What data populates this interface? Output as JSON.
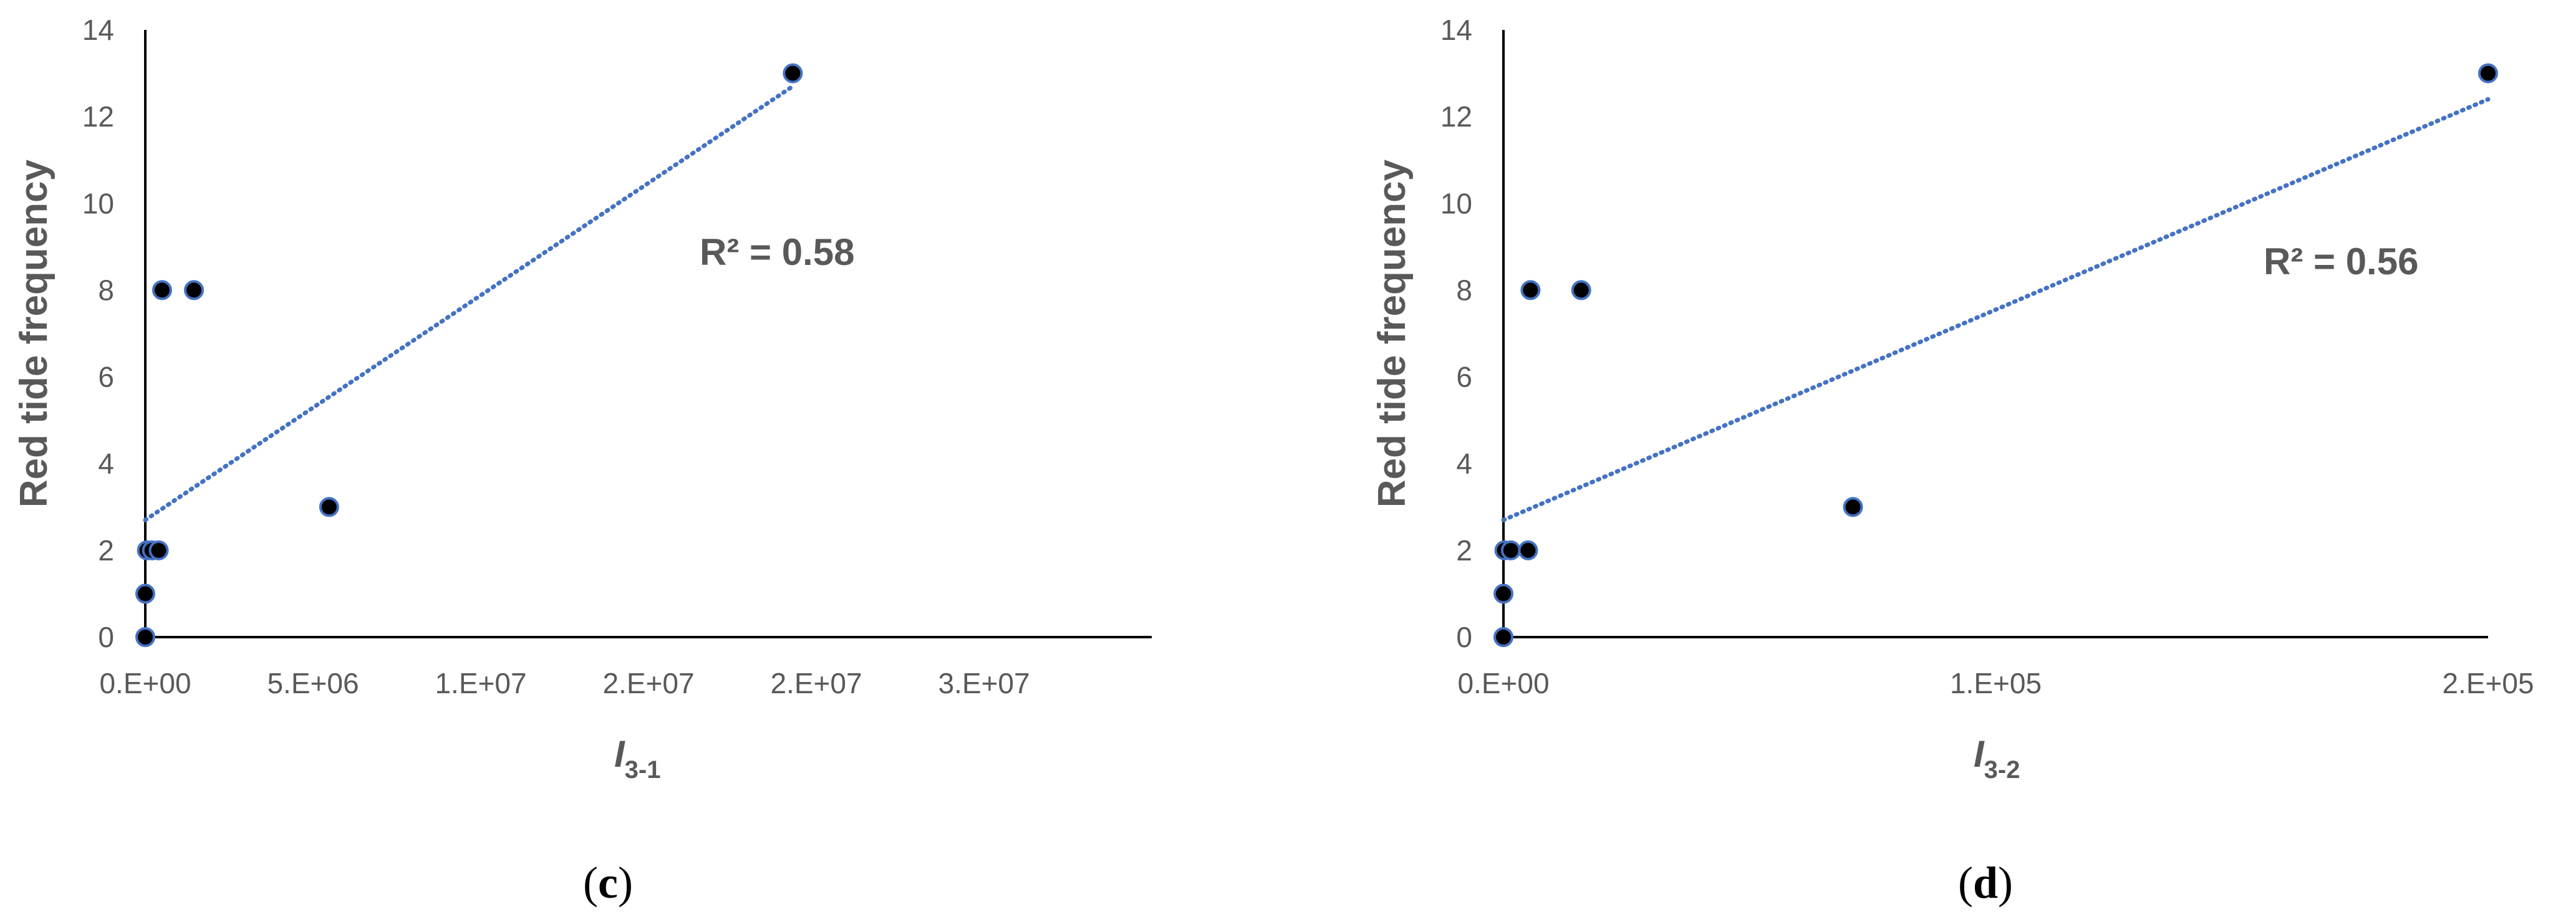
{
  "chart_data": [
    {
      "type": "scatter",
      "panel_label": "c",
      "ylabel": "Red tide frequency",
      "xlabel": {
        "main": "I",
        "subscript": "3-1"
      },
      "xlim": [
        0,
        30000000
      ],
      "ylim": [
        0,
        14
      ],
      "x_ticks": [
        {
          "value": 0,
          "label": "0.E+00"
        },
        {
          "value": 5000000,
          "label": "5.E+06"
        },
        {
          "value": 10000000,
          "label": "1.E+07"
        },
        {
          "value": 15000000,
          "label": "2.E+07"
        },
        {
          "value": 20000000,
          "label": "2.E+07"
        },
        {
          "value": 25000000,
          "label": "3.E+07"
        }
      ],
      "y_ticks": [
        0,
        2,
        4,
        6,
        8,
        10,
        12,
        14
      ],
      "points": [
        {
          "x": 0,
          "y": 0
        },
        {
          "x": 0,
          "y": 1
        },
        {
          "x": 50000,
          "y": 2
        },
        {
          "x": 200000,
          "y": 2
        },
        {
          "x": 400000,
          "y": 2
        },
        {
          "x": 500000,
          "y": 8
        },
        {
          "x": 1450000,
          "y": 8
        },
        {
          "x": 5480000,
          "y": 3
        },
        {
          "x": 19300000,
          "y": 13
        }
      ],
      "trendline": {
        "x": [
          0,
          19300000
        ],
        "y": [
          2.7,
          12.7
        ],
        "style": "dotted"
      },
      "annotation": "R² = 0.58",
      "grid": false,
      "colors": {
        "marker_fill": "#000000",
        "marker_edge": "#4472C4",
        "trendline": "#4472C4",
        "text": "#595959"
      }
    },
    {
      "type": "scatter",
      "panel_label": "d",
      "ylabel": "Red tide frequency",
      "xlabel": {
        "main": "I",
        "subscript": "3-2"
      },
      "xlim": [
        0,
        200000
      ],
      "ylim": [
        0,
        14
      ],
      "x_ticks": [
        {
          "value": 0,
          "label": "0.E+00"
        },
        {
          "value": 100000,
          "label": "1.E+05"
        },
        {
          "value": 200000,
          "label": "2.E+05"
        }
      ],
      "y_ticks": [
        0,
        2,
        4,
        6,
        8,
        10,
        12,
        14
      ],
      "points": [
        {
          "x": 0,
          "y": 0
        },
        {
          "x": 0,
          "y": 1
        },
        {
          "x": 200,
          "y": 2
        },
        {
          "x": 1500,
          "y": 2
        },
        {
          "x": 5000,
          "y": 2
        },
        {
          "x": 5500,
          "y": 8
        },
        {
          "x": 15800,
          "y": 8
        },
        {
          "x": 71000,
          "y": 3
        },
        {
          "x": 200000,
          "y": 13
        }
      ],
      "trendline": {
        "x": [
          0,
          200000
        ],
        "y": [
          2.7,
          12.4
        ],
        "style": "dotted"
      },
      "annotation": "R² = 0.56",
      "grid": false,
      "colors": {
        "marker_fill": "#000000",
        "marker_edge": "#4472C4",
        "trendline": "#4472C4",
        "text": "#595959"
      }
    }
  ]
}
